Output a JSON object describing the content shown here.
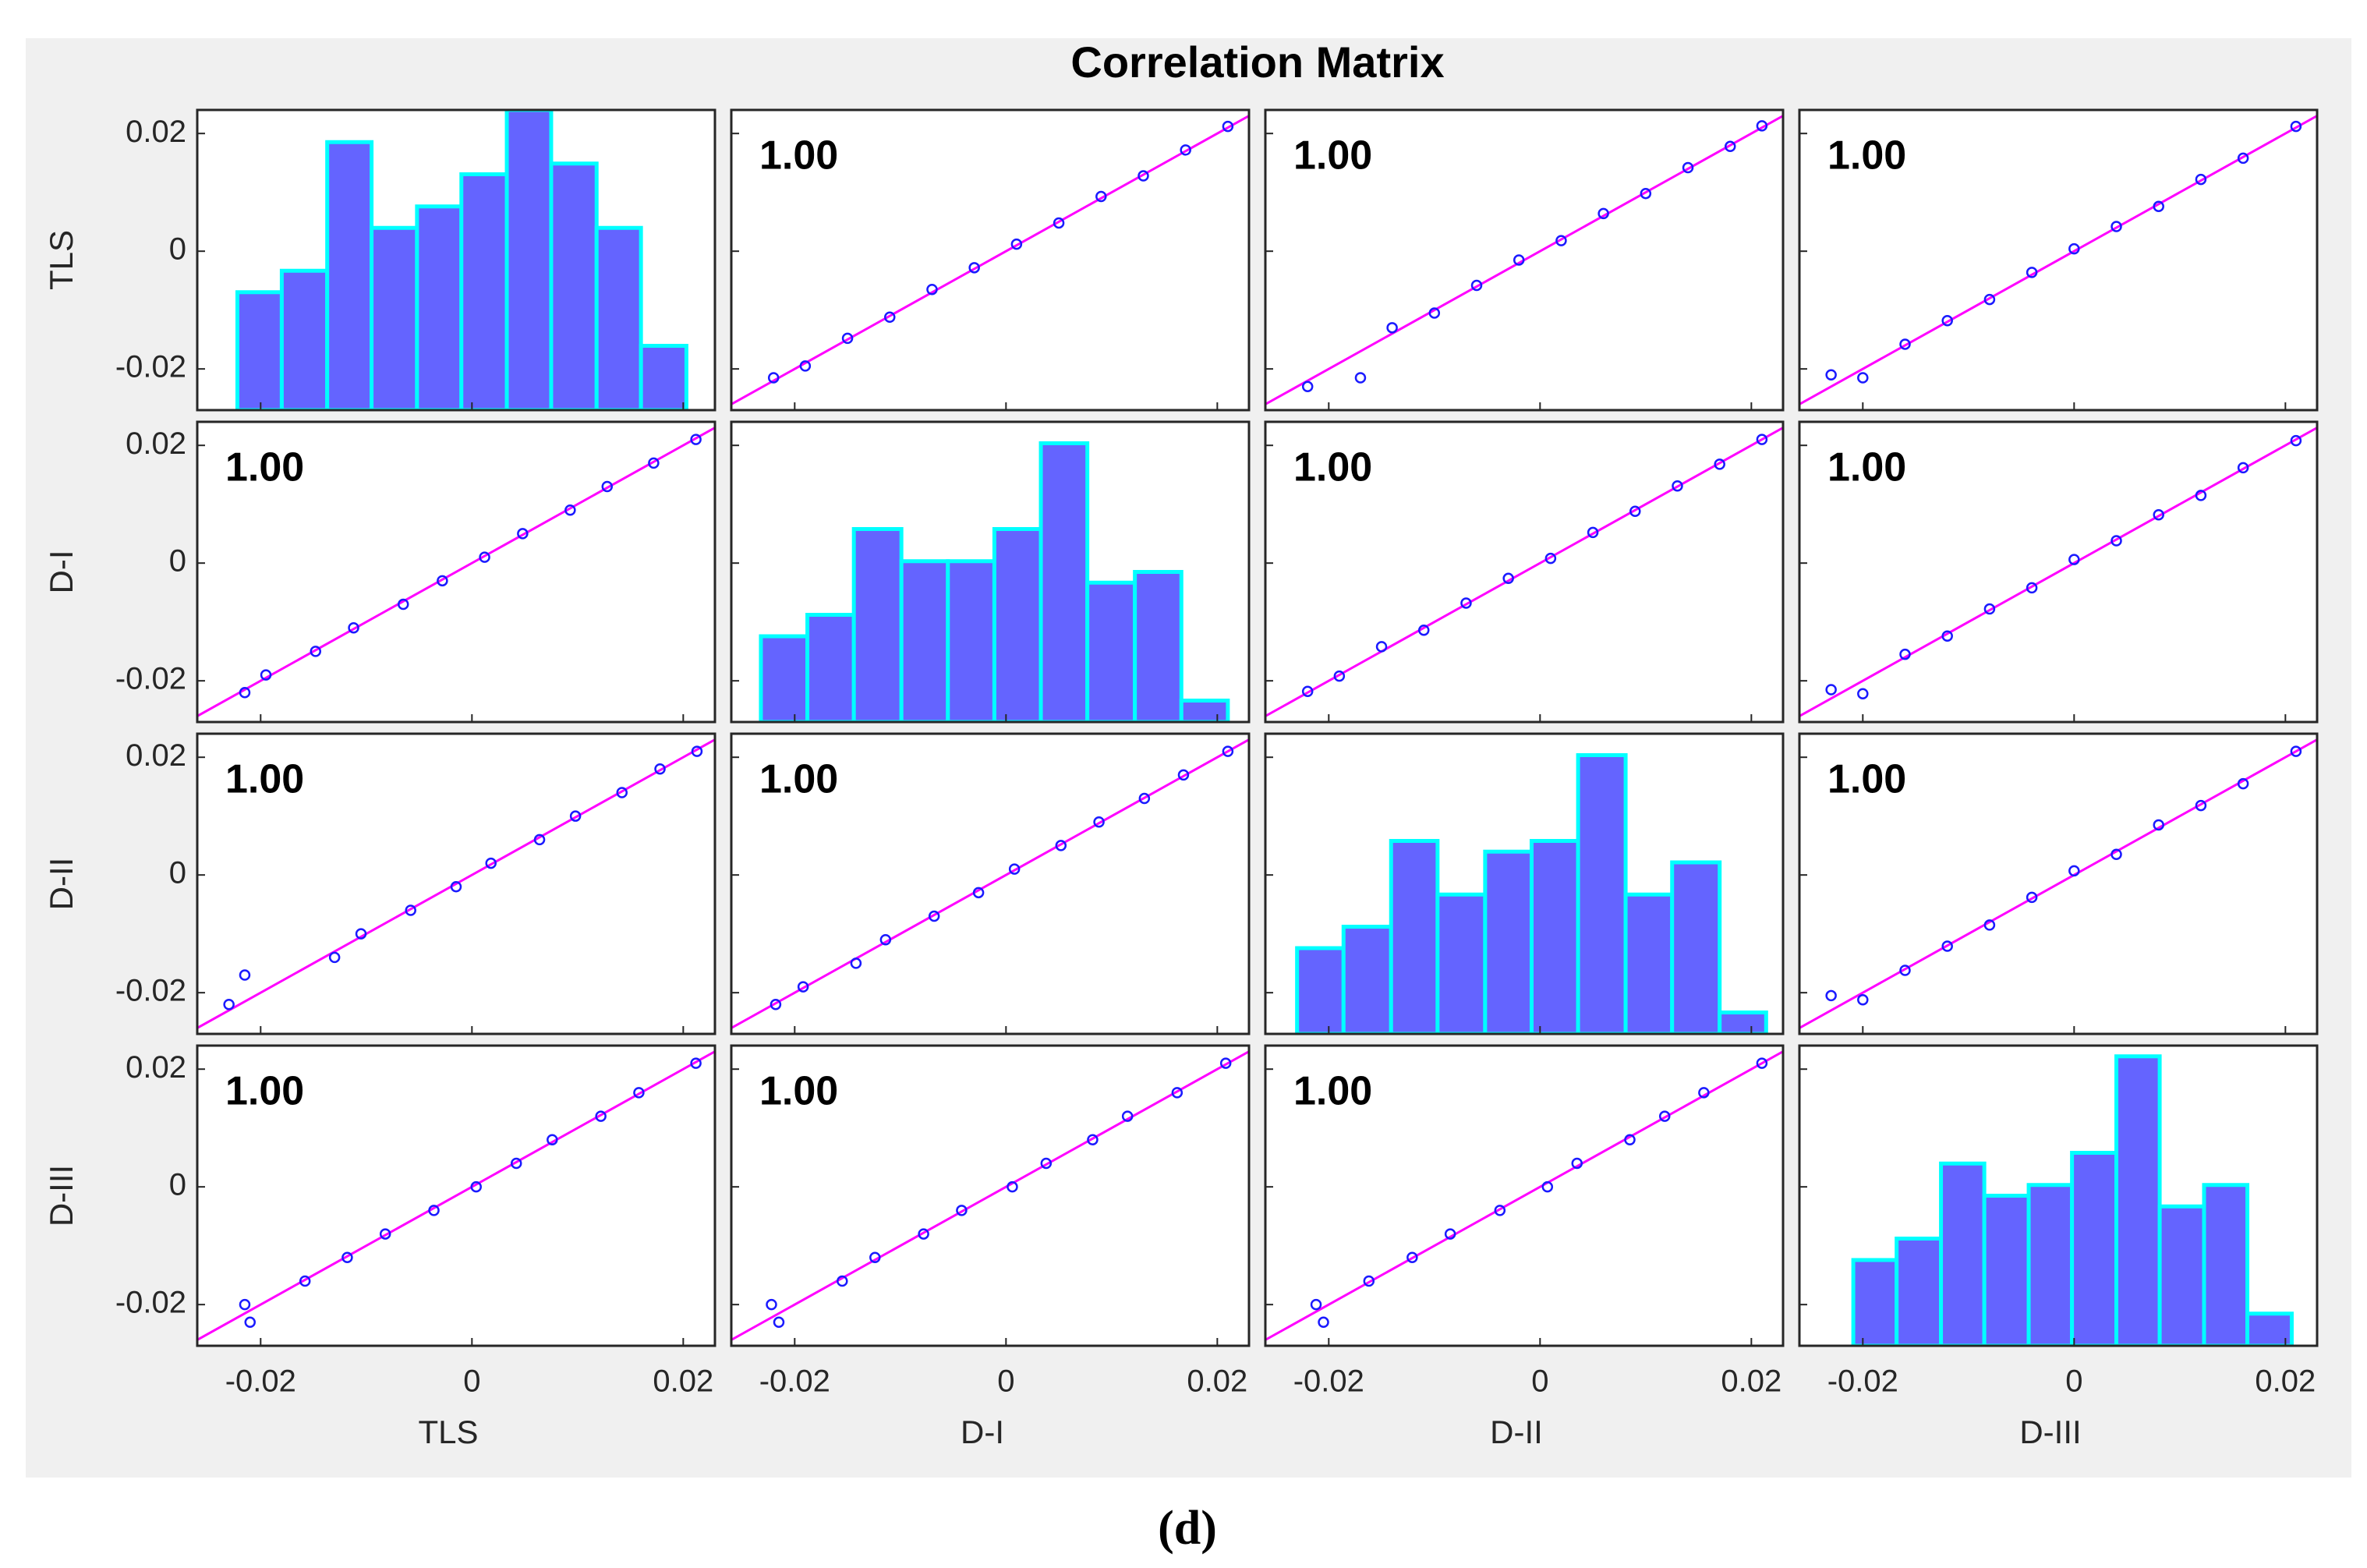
{
  "chart_data": {
    "type": "scatter_matrix",
    "title": "Correlation Matrix",
    "caption": "(d)",
    "variables": [
      "TLS",
      "D-I",
      "D-II",
      "D-III"
    ],
    "xlim": [
      -0.026,
      0.023
    ],
    "ylim": [
      -0.027,
      0.024
    ],
    "xticks": [
      -0.02,
      0,
      0.02
    ],
    "yticks": [
      -0.02,
      0,
      0.02
    ],
    "r": [
      [
        null,
        1,
        1,
        1
      ],
      [
        1,
        null,
        1,
        1
      ],
      [
        1,
        1,
        null,
        1
      ],
      [
        1,
        1,
        1,
        null
      ]
    ],
    "r_labels": [
      [
        null,
        "1.00",
        "1.00",
        "1.00"
      ],
      [
        "1.00",
        null,
        "1.00",
        "1.00"
      ],
      [
        "1.00",
        "1.00",
        null,
        "1.00"
      ],
      [
        "1.00",
        "1.00",
        "1.00",
        null
      ]
    ],
    "hist_color": "#6464ff",
    "hist_edge_color": "#00ffff",
    "hist_ylim": [
      0,
      28
    ],
    "histograms": [
      {
        "bins": [
          -0.0222,
          -0.018,
          -0.0137,
          -0.0095,
          -0.0052,
          -0.001,
          0.0033,
          0.0075,
          0.0118,
          0.016,
          0.0203
        ],
        "counts": [
          11,
          13,
          25,
          17,
          19,
          22,
          28,
          23,
          17,
          6
        ]
      },
      {
        "bins": [
          -0.0232,
          -0.0188,
          -0.0144,
          -0.0099,
          -0.0055,
          -0.0011,
          0.0033,
          0.0077,
          0.0122,
          0.0166,
          0.021
        ],
        "counts": [
          8,
          10,
          18,
          15,
          15,
          18,
          26,
          13,
          14,
          2
        ]
      },
      {
        "bins": [
          -0.023,
          -0.0186,
          -0.0141,
          -0.0097,
          -0.0052,
          -0.0008,
          0.0036,
          0.0081,
          0.0125,
          0.017,
          0.0214
        ],
        "counts": [
          8,
          10,
          18,
          13,
          17,
          18,
          26,
          13,
          16,
          2
        ]
      },
      {
        "bins": [
          -0.0209,
          -0.0168,
          -0.0126,
          -0.0085,
          -0.0043,
          -0.0002,
          0.004,
          0.0081,
          0.0123,
          0.0164,
          0.0206
        ],
        "counts": [
          8,
          10,
          17,
          14,
          15,
          18,
          27,
          13,
          15,
          3
        ]
      }
    ],
    "marker_color": "#1a1aff",
    "fit": {
      "slope": 1,
      "intercept": 0,
      "color": "#ff00ff"
    },
    "points": [
      [
        null,
        {
          "x": [
            -0.022,
            -0.019,
            -0.015,
            -0.011,
            -0.007,
            -0.003,
            0.001,
            0.005,
            0.009,
            0.013,
            0.017,
            0.021
          ],
          "y": [
            -0.0215,
            -0.0195,
            -0.0148,
            -0.0112,
            -0.0065,
            -0.0028,
            0.0012,
            0.0048,
            0.0093,
            0.0128,
            0.0172,
            0.0212
          ]
        },
        {
          "x": [
            -0.022,
            -0.017,
            -0.014,
            -0.01,
            -0.006,
            -0.002,
            0.002,
            0.006,
            0.01,
            0.014,
            0.018,
            0.021
          ],
          "y": [
            -0.023,
            -0.0215,
            -0.013,
            -0.0105,
            -0.0058,
            -0.0015,
            0.0018,
            0.0064,
            0.0098,
            0.0142,
            0.0178,
            0.0213
          ]
        },
        {
          "x": [
            -0.023,
            -0.02,
            -0.016,
            -0.012,
            -0.008,
            -0.004,
            0,
            0.004,
            0.008,
            0.012,
            0.016,
            0.021
          ],
          "y": [
            -0.021,
            -0.0215,
            -0.0158,
            -0.0118,
            -0.0082,
            -0.0036,
            0.0004,
            0.0042,
            0.0076,
            0.0122,
            0.0158,
            0.0212
          ]
        }
      ],
      [
        {
          "x": [
            -0.0215,
            -0.0195,
            -0.0148,
            -0.0112,
            -0.0065,
            -0.0028,
            0.0012,
            0.0048,
            0.0093,
            0.0128,
            0.0172,
            0.0212
          ],
          "y": [
            -0.022,
            -0.019,
            -0.015,
            -0.011,
            -0.007,
            -0.003,
            0.001,
            0.005,
            0.009,
            0.013,
            0.017,
            0.021
          ]
        },
        null,
        {
          "x": [
            -0.022,
            -0.019,
            -0.015,
            -0.011,
            -0.007,
            -0.003,
            0.001,
            0.005,
            0.009,
            0.013,
            0.017,
            0.021
          ],
          "y": [
            -0.0218,
            -0.0192,
            -0.0142,
            -0.0114,
            -0.0068,
            -0.0026,
            0.0008,
            0.0052,
            0.0088,
            0.0131,
            0.0168,
            0.021
          ]
        },
        {
          "x": [
            -0.023,
            -0.02,
            -0.016,
            -0.012,
            -0.008,
            -0.004,
            0,
            0.004,
            0.008,
            0.012,
            0.016,
            0.021
          ],
          "y": [
            -0.0215,
            -0.0222,
            -0.0155,
            -0.0124,
            -0.0078,
            -0.0042,
            0.0006,
            0.0038,
            0.0082,
            0.0115,
            0.0162,
            0.0208
          ]
        }
      ],
      [
        {
          "x": [
            -0.023,
            -0.0215,
            -0.013,
            -0.0105,
            -0.0058,
            -0.0015,
            0.0018,
            0.0064,
            0.0098,
            0.0142,
            0.0178,
            0.0213
          ],
          "y": [
            -0.022,
            -0.017,
            -0.014,
            -0.01,
            -0.006,
            -0.002,
            0.002,
            0.006,
            0.01,
            0.014,
            0.018,
            0.021
          ]
        },
        {
          "x": [
            -0.0218,
            -0.0192,
            -0.0142,
            -0.0114,
            -0.0068,
            -0.0026,
            0.0008,
            0.0052,
            0.0088,
            0.0131,
            0.0168,
            0.021
          ],
          "y": [
            -0.022,
            -0.019,
            -0.015,
            -0.011,
            -0.007,
            -0.003,
            0.001,
            0.005,
            0.009,
            0.013,
            0.017,
            0.021
          ]
        },
        null,
        {
          "x": [
            -0.023,
            -0.02,
            -0.016,
            -0.012,
            -0.008,
            -0.004,
            0,
            0.004,
            0.008,
            0.012,
            0.016,
            0.021
          ],
          "y": [
            -0.0205,
            -0.0212,
            -0.0162,
            -0.0121,
            -0.0085,
            -0.0038,
            0.0007,
            0.0035,
            0.0085,
            0.0118,
            0.0155,
            0.021
          ]
        }
      ],
      [
        {
          "x": [
            -0.021,
            -0.0215,
            -0.0158,
            -0.0118,
            -0.0082,
            -0.0036,
            0.0004,
            0.0042,
            0.0076,
            0.0122,
            0.0158,
            0.0212
          ],
          "y": [
            -0.023,
            -0.02,
            -0.016,
            -0.012,
            -0.008,
            -0.004,
            0,
            0.004,
            0.008,
            0.012,
            0.016,
            0.021
          ]
        },
        {
          "x": [
            -0.0215,
            -0.0222,
            -0.0155,
            -0.0124,
            -0.0078,
            -0.0042,
            0.0006,
            0.0038,
            0.0082,
            0.0115,
            0.0162,
            0.0208
          ],
          "y": [
            -0.023,
            -0.02,
            -0.016,
            -0.012,
            -0.008,
            -0.004,
            0,
            0.004,
            0.008,
            0.012,
            0.016,
            0.021
          ]
        },
        {
          "x": [
            -0.0205,
            -0.0212,
            -0.0162,
            -0.0121,
            -0.0085,
            -0.0038,
            0.0007,
            0.0035,
            0.0085,
            0.0118,
            0.0155,
            0.021
          ],
          "y": [
            -0.023,
            -0.02,
            -0.016,
            -0.012,
            -0.008,
            -0.004,
            0,
            0.004,
            0.008,
            0.012,
            0.016,
            0.021
          ]
        },
        null
      ]
    ]
  }
}
